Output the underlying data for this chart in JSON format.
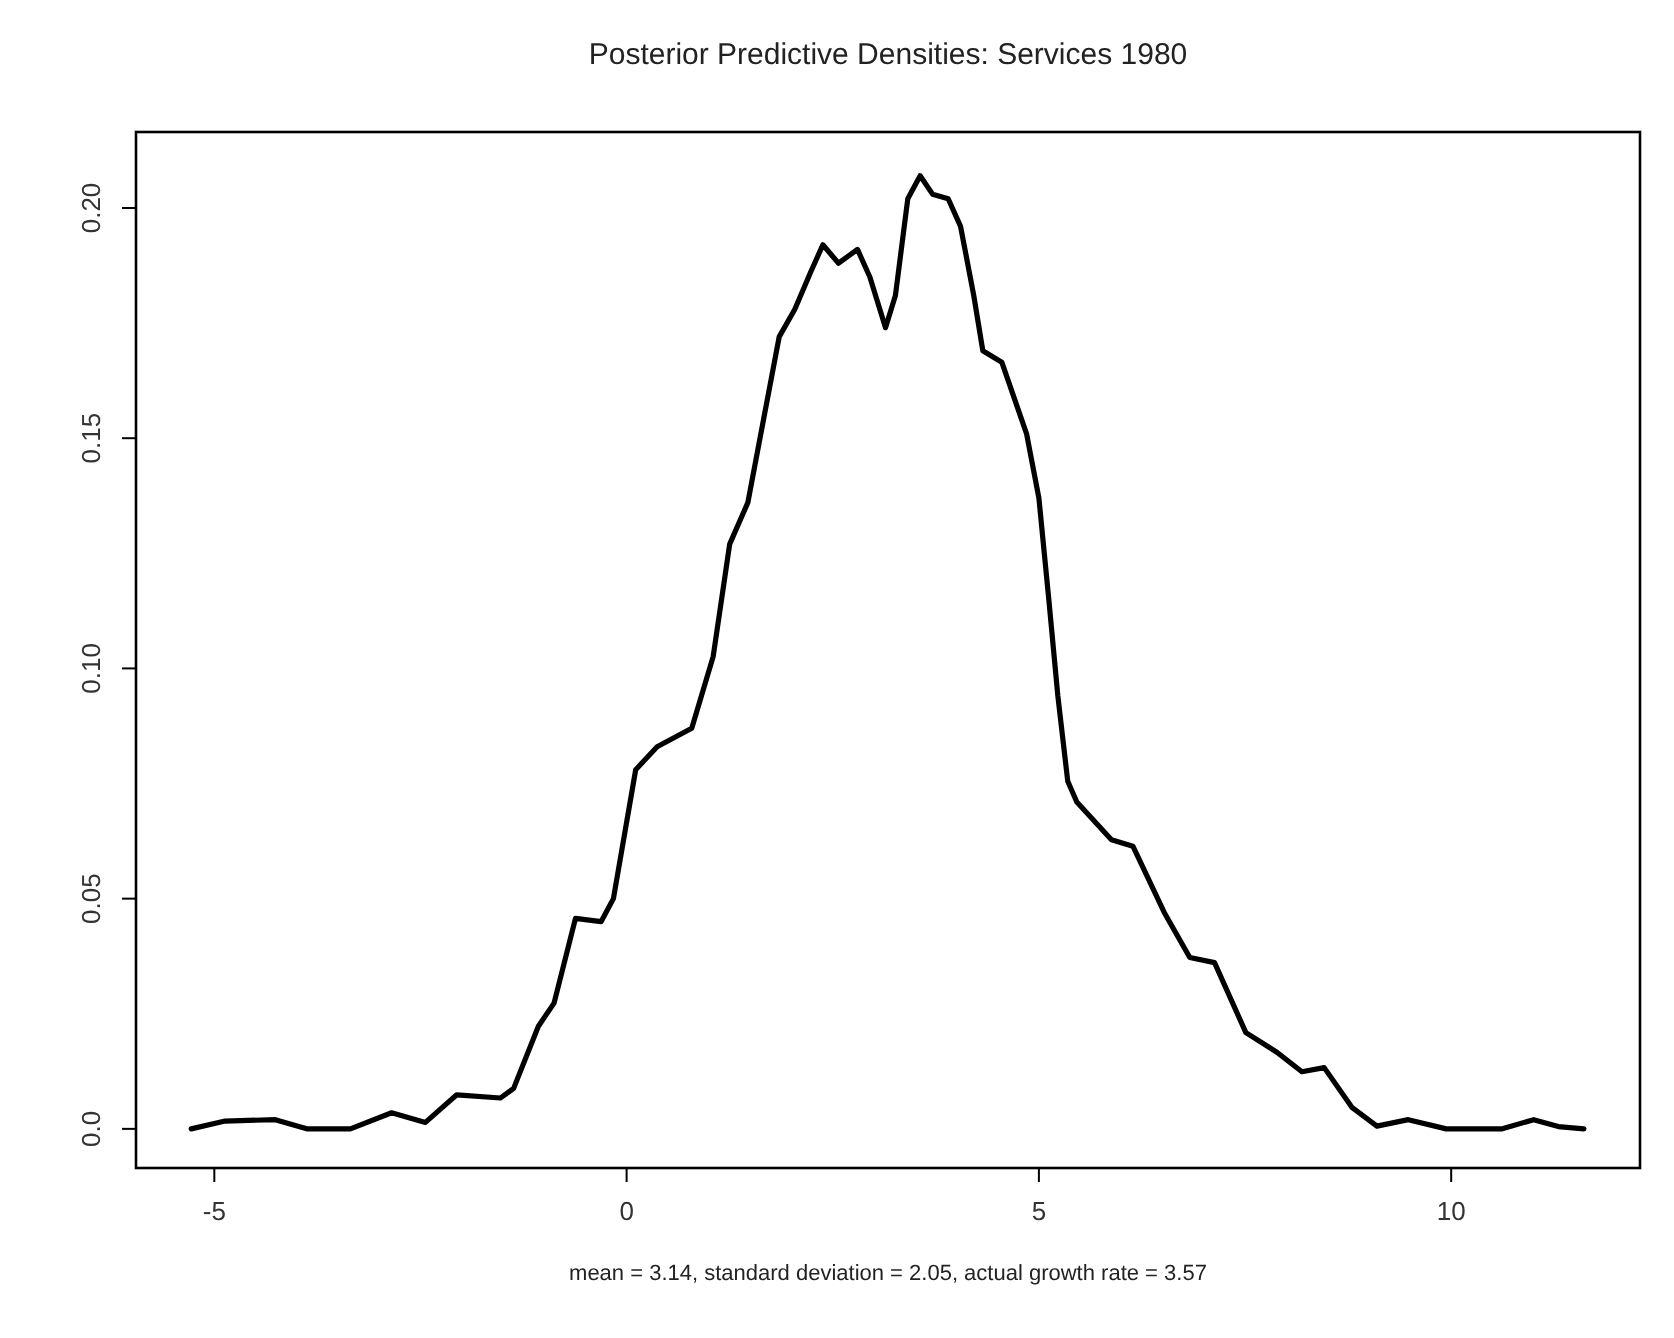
{
  "chart_data": {
    "type": "line",
    "title": "Posterior Predictive Densities: Services 1980",
    "xlabel": "mean = 3.14, standard deviation = 2.05, actual growth rate = 3.57",
    "xlim": [
      -5.95,
      12.29
    ],
    "ylim": [
      -0.0085,
      0.2165
    ],
    "xticks": [
      -5,
      0,
      5,
      10
    ],
    "yticks": [
      {
        "value": 0,
        "label": "0.0"
      },
      {
        "value": 0.05,
        "label": "0.05"
      },
      {
        "value": 0.1,
        "label": "0.10"
      },
      {
        "value": 0.15,
        "label": "0.15"
      },
      {
        "value": 0.2,
        "label": "0.20"
      }
    ],
    "grid": false,
    "marker": "none",
    "line_style": "solid",
    "series": [
      {
        "color": "#000000",
        "x": [
          -5.28,
          -4.87,
          -4.26,
          -3.88,
          -3.35,
          -2.85,
          -2.44,
          -2.06,
          -1.53,
          -1.37,
          -1.07,
          -0.88,
          -0.62,
          -0.31,
          -0.16,
          0.11,
          0.37,
          0.79,
          1.05,
          1.25,
          1.47,
          1.66,
          1.85,
          2.04,
          2.23,
          2.38,
          2.57,
          2.8,
          2.95,
          3.14,
          3.26,
          3.41,
          3.56,
          3.71,
          3.9,
          4.05,
          4.21,
          4.32,
          4.55,
          4.85,
          5.0,
          5.12,
          5.23,
          5.35,
          5.46,
          5.88,
          6.14,
          6.52,
          6.83,
          7.13,
          7.51,
          7.89,
          8.19,
          8.46,
          8.8,
          9.1,
          9.48,
          9.94,
          10.62,
          11.0,
          11.3,
          11.61
        ],
        "values": [
          0,
          0.0017,
          0.002,
          0,
          0,
          0.0035,
          0.0014,
          0.0074,
          0.0067,
          0.0088,
          0.0223,
          0.0273,
          0.0457,
          0.045,
          0.05,
          0.078,
          0.083,
          0.087,
          0.1026,
          0.127,
          0.136,
          0.154,
          0.172,
          0.178,
          0.186,
          0.192,
          0.188,
          0.191,
          0.185,
          0.174,
          0.181,
          0.202,
          0.207,
          0.203,
          0.202,
          0.196,
          0.181,
          0.169,
          0.1665,
          0.151,
          0.137,
          0.115,
          0.094,
          0.0755,
          0.071,
          0.0628,
          0.0614,
          0.047,
          0.0372,
          0.0361,
          0.0209,
          0.0166,
          0.0124,
          0.0133,
          0.0046,
          0.0006,
          0.002,
          0,
          0,
          0.002,
          0.0005,
          0
        ]
      }
    ]
  }
}
